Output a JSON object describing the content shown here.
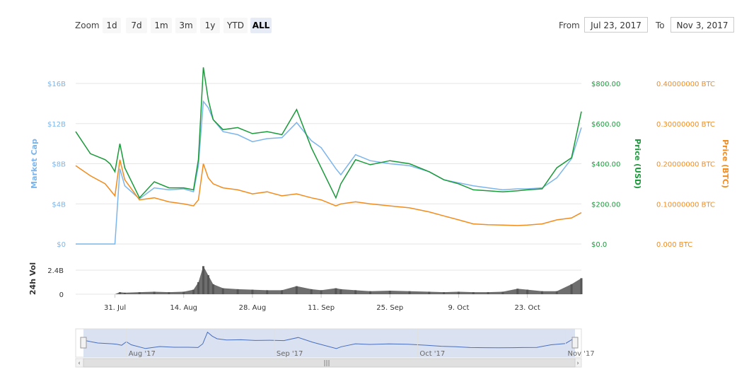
{
  "toolbar": {
    "zoom_label": "Zoom",
    "zoom_buttons": [
      "1d",
      "7d",
      "1m",
      "3m",
      "1y",
      "YTD",
      "ALL"
    ],
    "active_zoom": "ALL",
    "from_label": "From",
    "from_value": "Jul 23, 2017",
    "to_label": "To",
    "to_value": "Nov 3, 2017"
  },
  "colors": {
    "market_cap": "#7cb5ec",
    "price_usd": "#1a9a3a",
    "price_btc": "#f28c1e",
    "volume": "#555555",
    "navigator_fill": "#d6def0",
    "navigator_line": "#4a6fbf"
  },
  "chart_data": {
    "type": "line",
    "x": [
      "2017-07-23",
      "2017-07-26",
      "2017-07-29",
      "2017-07-30",
      "2017-07-31",
      "2017-08-01",
      "2017-08-02",
      "2017-08-05",
      "2017-08-08",
      "2017-08-11",
      "2017-08-14",
      "2017-08-16",
      "2017-08-17",
      "2017-08-18",
      "2017-08-19",
      "2017-08-20",
      "2017-08-22",
      "2017-08-25",
      "2017-08-28",
      "2017-08-31",
      "2017-09-03",
      "2017-09-06",
      "2017-09-09",
      "2017-09-11",
      "2017-09-14",
      "2017-09-15",
      "2017-09-18",
      "2017-09-21",
      "2017-09-25",
      "2017-09-29",
      "2017-10-03",
      "2017-10-06",
      "2017-10-09",
      "2017-10-12",
      "2017-10-15",
      "2017-10-18",
      "2017-10-21",
      "2017-10-23",
      "2017-10-26",
      "2017-10-29",
      "2017-11-01",
      "2017-11-03"
    ],
    "series": [
      {
        "name": "Market Cap",
        "axis": "Market Cap",
        "values": [
          0,
          0,
          0,
          0,
          0,
          7.5,
          5.8,
          4.5,
          5.6,
          5.4,
          5.5,
          5.2,
          7.8,
          14.2,
          13.6,
          12.4,
          11.2,
          10.9,
          10.2,
          10.5,
          10.6,
          12.1,
          10.3,
          9.6,
          7.5,
          6.9,
          8.9,
          8.3,
          8.0,
          7.8,
          7.2,
          6.4,
          6.1,
          5.8,
          5.6,
          5.4,
          5.5,
          5.5,
          5.6,
          6.6,
          8.5,
          11.6
        ]
      },
      {
        "name": "Price (USD)",
        "axis": "Price (USD)",
        "values": [
          560,
          450,
          420,
          400,
          360,
          500,
          380,
          230,
          310,
          280,
          280,
          270,
          420,
          880,
          720,
          620,
          570,
          580,
          550,
          560,
          545,
          670,
          480,
          380,
          230,
          300,
          420,
          395,
          415,
          400,
          360,
          320,
          300,
          270,
          265,
          260,
          265,
          270,
          275,
          380,
          430,
          660
        ]
      },
      {
        "name": "Price (BTC)",
        "axis": "Price (BTC)",
        "values": [
          0.195,
          0.17,
          0.15,
          0.135,
          0.12,
          0.21,
          0.16,
          0.11,
          0.115,
          0.105,
          0.1,
          0.095,
          0.11,
          0.2,
          0.165,
          0.15,
          0.14,
          0.135,
          0.125,
          0.13,
          0.12,
          0.125,
          0.115,
          0.11,
          0.095,
          0.1,
          0.105,
          0.1,
          0.095,
          0.09,
          0.08,
          0.07,
          0.06,
          0.05,
          0.048,
          0.047,
          0.046,
          0.047,
          0.05,
          0.06,
          0.065,
          0.078
        ]
      },
      {
        "name": "24h Vol",
        "axis": "24h Vol",
        "values": [
          0,
          0,
          0,
          0,
          0,
          0.2,
          0.15,
          0.2,
          0.25,
          0.2,
          0.25,
          0.45,
          1.2,
          2.8,
          1.9,
          1.0,
          0.6,
          0.5,
          0.45,
          0.4,
          0.4,
          0.8,
          0.5,
          0.4,
          0.6,
          0.5,
          0.4,
          0.3,
          0.35,
          0.3,
          0.25,
          0.2,
          0.25,
          0.2,
          0.2,
          0.25,
          0.55,
          0.45,
          0.3,
          0.3,
          1.0,
          1.6
        ]
      }
    ],
    "x_ticks": [
      "31. Jul",
      "14. Aug",
      "28. Aug",
      "11. Sep",
      "25. Sep",
      "9. Oct",
      "23. Oct"
    ],
    "market_cap_ticks": [
      "$0",
      "$4B",
      "$8B",
      "$12B",
      "$16B"
    ],
    "usd_ticks": [
      "$0.0",
      "$200.00",
      "$400.00",
      "$600.00",
      "$800.00"
    ],
    "btc_ticks": [
      "0.000 BTC",
      "0.10000000 BTC",
      "0.20000000 BTC",
      "0.30000000 BTC",
      "0.40000000 BTC"
    ],
    "vol_ticks": [
      "0",
      "2.4B"
    ],
    "navigator_ticks": [
      "Aug '17",
      "Sep '17",
      "Oct '17",
      "Nov '17"
    ],
    "ylabels": {
      "market_cap": "Market Cap",
      "usd": "Price (USD)",
      "btc": "Price (BTC)",
      "vol": "24h Vol"
    },
    "ylim_market_cap": [
      0,
      16
    ],
    "ylim_usd": [
      0,
      800
    ],
    "ylim_btc": [
      0,
      0.4
    ],
    "ylim_vol": [
      0,
      2.4
    ],
    "grid": true
  }
}
